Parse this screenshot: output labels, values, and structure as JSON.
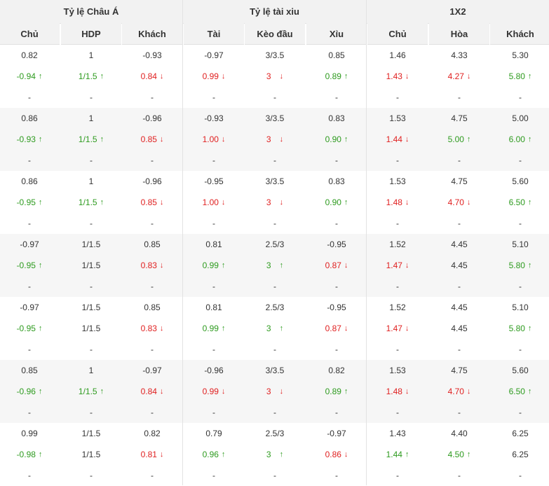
{
  "groups": [
    {
      "label": "Tỷ lệ Châu Á"
    },
    {
      "label": "Tỷ lệ tài xiu"
    },
    {
      "label": "1X2"
    }
  ],
  "columns": [
    {
      "label": "Chủ"
    },
    {
      "label": "HDP"
    },
    {
      "label": "Khách"
    },
    {
      "label": "Tài"
    },
    {
      "label": "Kèo đầu"
    },
    {
      "label": "Xỉu"
    },
    {
      "label": "Chủ"
    },
    {
      "label": "Hòa"
    },
    {
      "label": "Khách"
    }
  ],
  "colors": {
    "up": "#2e9b1f",
    "down": "#e02020",
    "stripe": "#f6f6f6",
    "header": "#f2f2f2"
  },
  "icons": {
    "up": "arrow-up-icon",
    "down": "arrow-down-icon"
  },
  "arrow_glyphs": {
    "up": "↑",
    "down": "↓"
  },
  "rows": [
    {
      "open": [
        "0.82",
        "1",
        "-0.93",
        "-0.97",
        "3/3.5",
        "0.85",
        "1.46",
        "4.33",
        "5.30"
      ],
      "live": [
        {
          "v": "-0.94",
          "d": "up"
        },
        {
          "v": "1/1.5",
          "d": "up"
        },
        {
          "v": "0.84",
          "d": "down"
        },
        {
          "v": "0.99",
          "d": "down"
        },
        {
          "v": "3",
          "d": "down"
        },
        {
          "v": "0.89",
          "d": "up"
        },
        {
          "v": "1.43",
          "d": "down"
        },
        {
          "v": "4.27",
          "d": "down"
        },
        {
          "v": "5.80",
          "d": "up"
        }
      ],
      "run": [
        "-",
        "-",
        "-",
        "-",
        "-",
        "-",
        "-",
        "-",
        "-"
      ]
    },
    {
      "open": [
        "0.86",
        "1",
        "-0.96",
        "-0.93",
        "3/3.5",
        "0.83",
        "1.53",
        "4.75",
        "5.00"
      ],
      "live": [
        {
          "v": "-0.93",
          "d": "up"
        },
        {
          "v": "1/1.5",
          "d": "up"
        },
        {
          "v": "0.85",
          "d": "down"
        },
        {
          "v": "1.00",
          "d": "down"
        },
        {
          "v": "3",
          "d": "down"
        },
        {
          "v": "0.90",
          "d": "up"
        },
        {
          "v": "1.44",
          "d": "down"
        },
        {
          "v": "5.00",
          "d": "up"
        },
        {
          "v": "6.00",
          "d": "up"
        }
      ],
      "run": [
        "-",
        "-",
        "-",
        "-",
        "-",
        "-",
        "-",
        "-",
        "-"
      ]
    },
    {
      "open": [
        "0.86",
        "1",
        "-0.96",
        "-0.95",
        "3/3.5",
        "0.83",
        "1.53",
        "4.75",
        "5.60"
      ],
      "live": [
        {
          "v": "-0.95",
          "d": "up"
        },
        {
          "v": "1/1.5",
          "d": "up"
        },
        {
          "v": "0.85",
          "d": "down"
        },
        {
          "v": "1.00",
          "d": "down"
        },
        {
          "v": "3",
          "d": "down"
        },
        {
          "v": "0.90",
          "d": "up"
        },
        {
          "v": "1.48",
          "d": "down"
        },
        {
          "v": "4.70",
          "d": "down"
        },
        {
          "v": "6.50",
          "d": "up"
        }
      ],
      "run": [
        "-",
        "-",
        "-",
        "-",
        "-",
        "-",
        "-",
        "-",
        "-"
      ]
    },
    {
      "open": [
        "-0.97",
        "1/1.5",
        "0.85",
        "0.81",
        "2.5/3",
        "-0.95",
        "1.52",
        "4.45",
        "5.10"
      ],
      "live": [
        {
          "v": "-0.95",
          "d": "up"
        },
        {
          "v": "1/1.5",
          "d": ""
        },
        {
          "v": "0.83",
          "d": "down"
        },
        {
          "v": "0.99",
          "d": "up"
        },
        {
          "v": "3",
          "d": "up"
        },
        {
          "v": "0.87",
          "d": "down"
        },
        {
          "v": "1.47",
          "d": "down"
        },
        {
          "v": "4.45",
          "d": ""
        },
        {
          "v": "5.80",
          "d": "up"
        }
      ],
      "run": [
        "-",
        "-",
        "-",
        "-",
        "-",
        "-",
        "-",
        "-",
        "-"
      ]
    },
    {
      "open": [
        "-0.97",
        "1/1.5",
        "0.85",
        "0.81",
        "2.5/3",
        "-0.95",
        "1.52",
        "4.45",
        "5.10"
      ],
      "live": [
        {
          "v": "-0.95",
          "d": "up"
        },
        {
          "v": "1/1.5",
          "d": ""
        },
        {
          "v": "0.83",
          "d": "down"
        },
        {
          "v": "0.99",
          "d": "up"
        },
        {
          "v": "3",
          "d": "up"
        },
        {
          "v": "0.87",
          "d": "down"
        },
        {
          "v": "1.47",
          "d": "down"
        },
        {
          "v": "4.45",
          "d": ""
        },
        {
          "v": "5.80",
          "d": "up"
        }
      ],
      "run": [
        "-",
        "-",
        "-",
        "-",
        "-",
        "-",
        "-",
        "-",
        "-"
      ]
    },
    {
      "open": [
        "0.85",
        "1",
        "-0.97",
        "-0.96",
        "3/3.5",
        "0.82",
        "1.53",
        "4.75",
        "5.60"
      ],
      "live": [
        {
          "v": "-0.96",
          "d": "up"
        },
        {
          "v": "1/1.5",
          "d": "up"
        },
        {
          "v": "0.84",
          "d": "down"
        },
        {
          "v": "0.99",
          "d": "down"
        },
        {
          "v": "3",
          "d": "down"
        },
        {
          "v": "0.89",
          "d": "up"
        },
        {
          "v": "1.48",
          "d": "down"
        },
        {
          "v": "4.70",
          "d": "down"
        },
        {
          "v": "6.50",
          "d": "up"
        }
      ],
      "run": [
        "-",
        "-",
        "-",
        "-",
        "-",
        "-",
        "-",
        "-",
        "-"
      ]
    },
    {
      "open": [
        "0.99",
        "1/1.5",
        "0.82",
        "0.79",
        "2.5/3",
        "-0.97",
        "1.43",
        "4.40",
        "6.25"
      ],
      "live": [
        {
          "v": "-0.98",
          "d": "up"
        },
        {
          "v": "1/1.5",
          "d": ""
        },
        {
          "v": "0.81",
          "d": "down"
        },
        {
          "v": "0.96",
          "d": "up"
        },
        {
          "v": "3",
          "d": "up"
        },
        {
          "v": "0.86",
          "d": "down"
        },
        {
          "v": "1.44",
          "d": "up"
        },
        {
          "v": "4.50",
          "d": "up"
        },
        {
          "v": "6.25",
          "d": ""
        }
      ],
      "run": [
        "-",
        "-",
        "-",
        "-",
        "-",
        "-",
        "-",
        "-",
        "-"
      ]
    }
  ]
}
